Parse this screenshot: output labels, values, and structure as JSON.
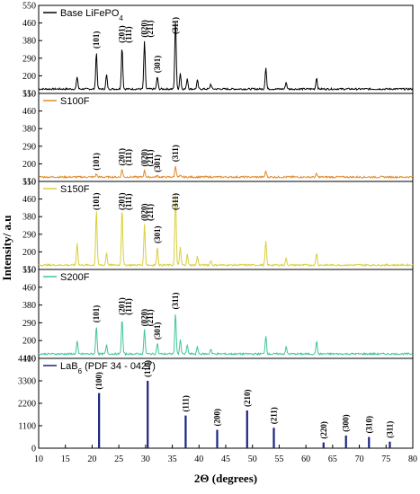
{
  "chart_data": {
    "type": "line",
    "xlabel": "2Θ (degrees)",
    "ylabel": "Intensity/ a.u",
    "xlim": [
      10,
      80
    ],
    "x_ticks": [
      "10",
      "15",
      "20",
      "25",
      "30",
      "35",
      "40",
      "45",
      "50",
      "55",
      "60",
      "65",
      "70",
      "75",
      "80"
    ],
    "grid": false,
    "series": [
      {
        "name": "Base LiFePO",
        "name_sub": "4",
        "color": "#000000",
        "y_ticks": [
          "110",
          "200",
          "290",
          "380",
          "460",
          "550"
        ],
        "y_range": [
          80,
          550
        ],
        "peaks": [
          {
            "x": 17.2,
            "y": 170
          },
          {
            "x": 20.8,
            "y": 300
          },
          {
            "x": 22.7,
            "y": 180
          },
          {
            "x": 25.6,
            "y": 330
          },
          {
            "x": 29.8,
            "y": 360
          },
          {
            "x": 32.2,
            "y": 170
          },
          {
            "x": 35.6,
            "y": 480
          },
          {
            "x": 36.5,
            "y": 190
          },
          {
            "x": 37.8,
            "y": 160
          },
          {
            "x": 39.7,
            "y": 150
          },
          {
            "x": 42.2,
            "y": 130
          },
          {
            "x": 52.5,
            "y": 220
          },
          {
            "x": 56.3,
            "y": 140
          },
          {
            "x": 62.0,
            "y": 165
          },
          {
            "x": 66.0,
            "y": 105
          }
        ],
        "peak_labels": [
          {
            "x": 20.8,
            "text": "(101)"
          },
          {
            "x": 25.6,
            "text": "(201)"
          },
          {
            "x": 26.8,
            "text": "(111)"
          },
          {
            "x": 29.8,
            "text": "(020)"
          },
          {
            "x": 30.9,
            "text": "(211)"
          },
          {
            "x": 32.2,
            "text": "(301)"
          },
          {
            "x": 35.6,
            "text": "(311)"
          }
        ]
      },
      {
        "name": "S100F",
        "color": "#e08a2a",
        "y_ticks": [
          "110",
          "200",
          "290",
          "380",
          "460",
          "550"
        ],
        "y_range": [
          80,
          550
        ],
        "peaks": [
          {
            "x": 20.8,
            "y": 120
          },
          {
            "x": 25.6,
            "y": 145
          },
          {
            "x": 29.8,
            "y": 140
          },
          {
            "x": 32.2,
            "y": 110
          },
          {
            "x": 35.6,
            "y": 165
          },
          {
            "x": 36.5,
            "y": 110
          },
          {
            "x": 52.5,
            "y": 135
          },
          {
            "x": 62.0,
            "y": 120
          }
        ],
        "peak_labels": [
          {
            "x": 20.8,
            "text": "(101)"
          },
          {
            "x": 25.6,
            "text": "(201)"
          },
          {
            "x": 26.8,
            "text": "(111)"
          },
          {
            "x": 29.8,
            "text": "(020)"
          },
          {
            "x": 30.9,
            "text": "(211)"
          },
          {
            "x": 32.2,
            "text": "(301)"
          },
          {
            "x": 35.6,
            "text": "(311)"
          }
        ]
      },
      {
        "name": "S150F",
        "color": "#d9cf3a",
        "y_ticks": [
          "110",
          "200",
          "290",
          "380",
          "460",
          "550"
        ],
        "y_range": [
          80,
          550
        ],
        "peaks": [
          {
            "x": 17.2,
            "y": 220
          },
          {
            "x": 20.8,
            "y": 400
          },
          {
            "x": 22.7,
            "y": 170
          },
          {
            "x": 25.6,
            "y": 410
          },
          {
            "x": 29.8,
            "y": 320
          },
          {
            "x": 32.2,
            "y": 200
          },
          {
            "x": 35.6,
            "y": 500
          },
          {
            "x": 36.5,
            "y": 200
          },
          {
            "x": 37.8,
            "y": 160
          },
          {
            "x": 39.7,
            "y": 150
          },
          {
            "x": 42.2,
            "y": 130
          },
          {
            "x": 52.5,
            "y": 230
          },
          {
            "x": 56.3,
            "y": 140
          },
          {
            "x": 62.0,
            "y": 170
          }
        ],
        "peak_labels": [
          {
            "x": 20.8,
            "text": "(101)"
          },
          {
            "x": 25.6,
            "text": "(201)"
          },
          {
            "x": 26.8,
            "text": "(111)"
          },
          {
            "x": 29.8,
            "text": "(020)"
          },
          {
            "x": 30.9,
            "text": "(211)"
          },
          {
            "x": 32.2,
            "text": "(301)"
          },
          {
            "x": 35.6,
            "text": "(311)"
          }
        ]
      },
      {
        "name": "S200F",
        "color": "#3fc49a",
        "y_ticks": [
          "110",
          "200",
          "290",
          "380",
          "460",
          "550"
        ],
        "y_range": [
          80,
          550
        ],
        "peaks": [
          {
            "x": 17.2,
            "y": 170
          },
          {
            "x": 20.8,
            "y": 250
          },
          {
            "x": 22.7,
            "y": 150
          },
          {
            "x": 25.6,
            "y": 290
          },
          {
            "x": 29.8,
            "y": 230
          },
          {
            "x": 32.2,
            "y": 160
          },
          {
            "x": 35.6,
            "y": 320
          },
          {
            "x": 36.5,
            "y": 180
          },
          {
            "x": 37.8,
            "y": 150
          },
          {
            "x": 39.7,
            "y": 140
          },
          {
            "x": 42.2,
            "y": 130
          },
          {
            "x": 52.5,
            "y": 200
          },
          {
            "x": 56.3,
            "y": 140
          },
          {
            "x": 62.0,
            "y": 170
          }
        ],
        "peak_labels": [
          {
            "x": 20.8,
            "text": "(101)"
          },
          {
            "x": 25.6,
            "text": "(201)"
          },
          {
            "x": 26.8,
            "text": "(111)"
          },
          {
            "x": 29.8,
            "text": "(020)"
          },
          {
            "x": 30.9,
            "text": "(211)"
          },
          {
            "x": 32.2,
            "text": "(301)"
          },
          {
            "x": 35.6,
            "text": "(311)"
          }
        ]
      },
      {
        "name": "LaB",
        "name_sub": "6",
        "name_suffix": " (PDF 34 - 0427)",
        "color": "#1a237e",
        "y_ticks": [
          "0",
          "1100",
          "2200",
          "3300",
          "4400"
        ],
        "y_range": [
          0,
          4400
        ],
        "sticks": [
          {
            "x": 21.3,
            "y": 2700
          },
          {
            "x": 30.4,
            "y": 3300
          },
          {
            "x": 37.5,
            "y": 1600
          },
          {
            "x": 43.4,
            "y": 900
          },
          {
            "x": 49.0,
            "y": 1850
          },
          {
            "x": 54.0,
            "y": 1000
          },
          {
            "x": 63.3,
            "y": 280
          },
          {
            "x": 67.5,
            "y": 620
          },
          {
            "x": 71.8,
            "y": 550
          },
          {
            "x": 75.7,
            "y": 320
          }
        ],
        "peak_labels": [
          {
            "x": 21.3,
            "text": "(100)"
          },
          {
            "x": 30.4,
            "text": "(110)"
          },
          {
            "x": 37.5,
            "text": "(111)"
          },
          {
            "x": 43.4,
            "text": "(200)"
          },
          {
            "x": 49.0,
            "text": "(210)"
          },
          {
            "x": 54.0,
            "text": "(211)"
          },
          {
            "x": 63.3,
            "text": "(220)"
          },
          {
            "x": 67.5,
            "text": "(300)"
          },
          {
            "x": 71.8,
            "text": "(310)"
          },
          {
            "x": 75.7,
            "text": "(311)"
          }
        ]
      }
    ]
  }
}
